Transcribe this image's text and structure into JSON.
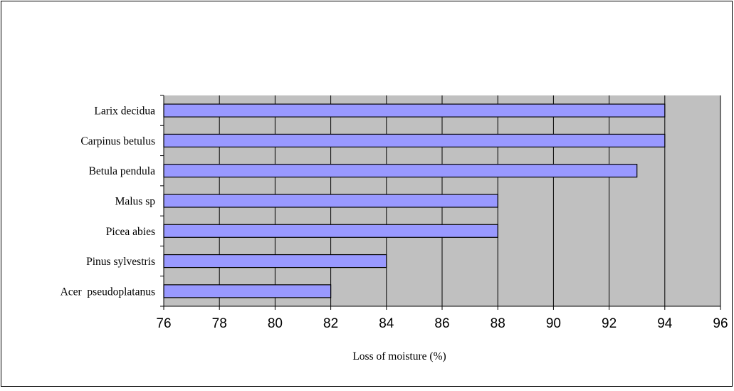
{
  "chart_data": {
    "type": "bar",
    "orientation": "horizontal",
    "title": "",
    "xlabel": "Loss of moisture (%)",
    "ylabel": "",
    "categories": [
      "Acer  pseudoplatanus",
      "Pinus sylvestris",
      "Picea abies",
      "Malus sp",
      "Betula pendula",
      "Carpinus betulus",
      "Larix decidua"
    ],
    "values": [
      82,
      84,
      88,
      88,
      93,
      94,
      94
    ],
    "xlim": [
      76,
      96
    ],
    "ticks": [
      76,
      78,
      80,
      82,
      84,
      86,
      88,
      90,
      92,
      94,
      96
    ],
    "grid": "vertical",
    "legend": "none",
    "colors": {
      "bar_fill": "#9999ff",
      "bar_stroke": "#000000",
      "plot_background": "#c0c0c0",
      "gridline": "#000000",
      "frame": "#000000"
    }
  }
}
